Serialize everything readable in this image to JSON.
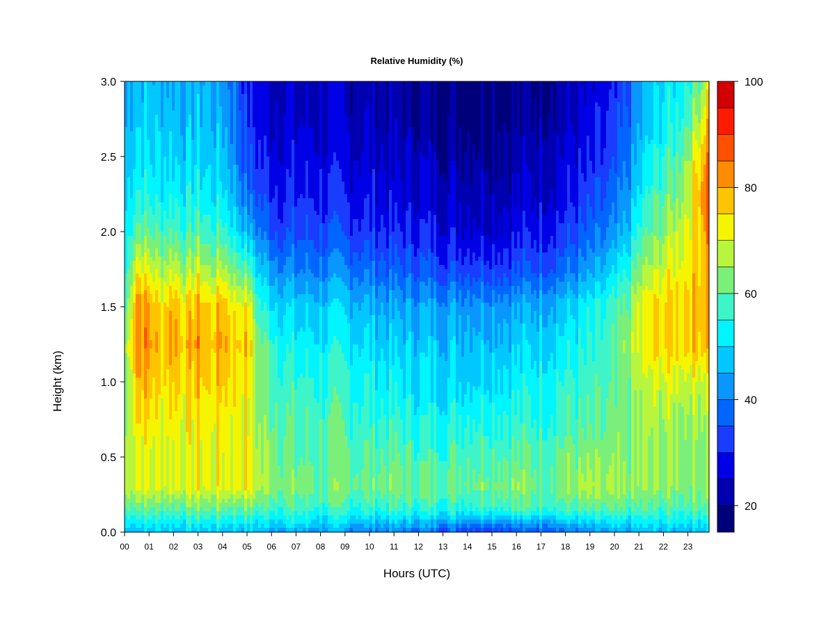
{
  "chart_data": {
    "type": "heatmap",
    "title": "Relative Humidity (%)",
    "xlabel": "Hours (UTC)",
    "ylabel": "Height (km)",
    "x_ticks": [
      "00",
      "01",
      "02",
      "03",
      "04",
      "05",
      "06",
      "07",
      "08",
      "09",
      "10",
      "11",
      "12",
      "13",
      "14",
      "15",
      "16",
      "17",
      "18",
      "19",
      "20",
      "21",
      "22",
      "23"
    ],
    "y_ticks": [
      "0.0",
      "0.5",
      "1.0",
      "1.5",
      "2.0",
      "2.5",
      "3.0"
    ],
    "xlim": [
      0,
      23.85
    ],
    "ylim": [
      0,
      3.0
    ],
    "colorbar": {
      "label_ticks": [
        "20",
        "40",
        "60",
        "80",
        "100"
      ],
      "range": [
        15,
        100
      ],
      "levels": [
        15,
        20,
        25,
        30,
        35,
        40,
        45,
        50,
        55,
        60,
        65,
        70,
        75,
        80,
        85,
        90,
        95,
        100
      ],
      "colors": [
        "#00007a",
        "#0000b0",
        "#0000e6",
        "#1a3cff",
        "#0066ff",
        "#0a96ff",
        "#00c8ff",
        "#00f5ff",
        "#3df5c8",
        "#7af07a",
        "#b8f53d",
        "#f5f500",
        "#ffc400",
        "#ff8c00",
        "#ff5000",
        "#ff1a00",
        "#d20000",
        "#820000"
      ]
    },
    "grid": false,
    "legend": "right",
    "x_hours": [
      0,
      0.5,
      1,
      1.5,
      2,
      2.5,
      3,
      3.5,
      4,
      4.5,
      5,
      5.5,
      6,
      6.5,
      7,
      8,
      9,
      10,
      11,
      12,
      13,
      14,
      15,
      16,
      17,
      18,
      19,
      20,
      20.5,
      21,
      21.5,
      22,
      22.5,
      23,
      23.5,
      23.85
    ],
    "y_heights": [
      0.0,
      0.05,
      0.15,
      0.3,
      0.5,
      0.75,
      1.0,
      1.25,
      1.5,
      1.75,
      2.0,
      2.25,
      2.5,
      2.75,
      3.0
    ],
    "rh_values": [
      [
        48,
        52,
        58,
        68,
        66,
        62,
        62,
        63,
        56,
        52,
        50,
        48,
        46,
        44,
        43
      ],
      [
        48,
        52,
        62,
        72,
        72,
        76,
        80,
        84,
        84,
        74,
        62,
        56,
        52,
        50,
        48
      ],
      [
        48,
        52,
        60,
        70,
        70,
        74,
        78,
        82,
        80,
        70,
        60,
        54,
        50,
        48,
        47
      ],
      [
        48,
        52,
        60,
        70,
        70,
        72,
        74,
        76,
        74,
        66,
        58,
        52,
        50,
        48,
        46
      ],
      [
        48,
        52,
        60,
        72,
        72,
        74,
        78,
        82,
        80,
        70,
        60,
        54,
        50,
        48,
        47
      ],
      [
        48,
        52,
        60,
        70,
        70,
        72,
        74,
        76,
        74,
        64,
        56,
        52,
        48,
        46,
        45
      ],
      [
        48,
        52,
        62,
        72,
        72,
        74,
        78,
        82,
        80,
        70,
        60,
        54,
        50,
        47,
        46
      ],
      [
        48,
        52,
        60,
        70,
        70,
        72,
        74,
        76,
        74,
        64,
        56,
        50,
        48,
        46,
        45
      ],
      [
        48,
        52,
        62,
        72,
        72,
        74,
        78,
        82,
        80,
        68,
        58,
        52,
        48,
        46,
        44
      ],
      [
        48,
        52,
        60,
        72,
        72,
        72,
        74,
        76,
        72,
        62,
        52,
        46,
        42,
        40,
        38
      ],
      [
        46,
        52,
        62,
        74,
        74,
        72,
        74,
        78,
        74,
        60,
        46,
        38,
        34,
        32,
        30
      ],
      [
        46,
        50,
        58,
        66,
        66,
        64,
        64,
        62,
        56,
        48,
        40,
        34,
        30,
        28,
        27
      ],
      [
        45,
        50,
        58,
        66,
        64,
        62,
        60,
        58,
        52,
        44,
        36,
        32,
        28,
        26,
        25
      ],
      [
        44,
        50,
        58,
        64,
        62,
        60,
        58,
        54,
        50,
        42,
        34,
        30,
        28,
        26,
        24
      ],
      [
        44,
        50,
        58,
        62,
        60,
        58,
        56,
        52,
        48,
        40,
        34,
        30,
        27,
        25,
        24
      ],
      [
        43,
        48,
        56,
        62,
        60,
        58,
        56,
        52,
        48,
        40,
        34,
        30,
        27,
        25,
        24
      ],
      [
        42,
        48,
        56,
        62,
        60,
        58,
        56,
        52,
        48,
        40,
        33,
        29,
        26,
        24,
        23
      ],
      [
        40,
        46,
        56,
        62,
        60,
        56,
        54,
        50,
        46,
        38,
        32,
        28,
        26,
        24,
        22
      ],
      [
        40,
        46,
        56,
        62,
        60,
        56,
        52,
        48,
        44,
        36,
        30,
        26,
        24,
        22,
        21
      ],
      [
        38,
        45,
        56,
        62,
        58,
        54,
        50,
        48,
        44,
        36,
        30,
        26,
        24,
        21,
        20
      ],
      [
        36,
        44,
        56,
        62,
        58,
        54,
        50,
        48,
        44,
        34,
        28,
        25,
        22,
        20,
        19
      ],
      [
        34,
        42,
        56,
        62,
        60,
        56,
        50,
        48,
        44,
        34,
        27,
        24,
        22,
        19,
        18
      ],
      [
        34,
        42,
        58,
        64,
        60,
        56,
        52,
        48,
        44,
        34,
        27,
        24,
        22,
        20,
        19
      ],
      [
        34,
        42,
        58,
        64,
        60,
        56,
        52,
        48,
        44,
        34,
        28,
        24,
        22,
        20,
        20
      ],
      [
        36,
        44,
        58,
        62,
        60,
        56,
        54,
        50,
        46,
        36,
        30,
        26,
        24,
        22,
        21
      ],
      [
        38,
        46,
        58,
        64,
        62,
        58,
        56,
        52,
        48,
        38,
        32,
        28,
        26,
        24,
        22
      ],
      [
        40,
        46,
        58,
        66,
        62,
        58,
        56,
        54,
        52,
        42,
        36,
        32,
        28,
        26,
        24
      ],
      [
        42,
        48,
        58,
        64,
        62,
        60,
        58,
        58,
        56,
        48,
        40,
        36,
        32,
        30,
        28
      ],
      [
        44,
        48,
        58,
        64,
        62,
        62,
        62,
        64,
        60,
        54,
        46,
        42,
        38,
        36,
        34
      ],
      [
        44,
        50,
        58,
        64,
        64,
        64,
        66,
        70,
        70,
        62,
        56,
        50,
        46,
        44,
        42
      ],
      [
        46,
        50,
        58,
        64,
        64,
        66,
        68,
        74,
        74,
        66,
        60,
        56,
        52,
        48,
        46
      ],
      [
        46,
        50,
        58,
        64,
        64,
        66,
        70,
        76,
        76,
        70,
        64,
        60,
        56,
        52,
        50
      ],
      [
        46,
        52,
        58,
        64,
        64,
        66,
        70,
        76,
        76,
        72,
        68,
        62,
        58,
        54,
        52
      ],
      [
        46,
        52,
        60,
        64,
        64,
        66,
        70,
        78,
        78,
        74,
        72,
        70,
        66,
        60,
        56
      ],
      [
        48,
        52,
        60,
        64,
        64,
        66,
        70,
        78,
        80,
        78,
        78,
        80,
        76,
        68,
        62
      ],
      [
        48,
        54,
        62,
        66,
        66,
        68,
        72,
        80,
        82,
        82,
        86,
        90,
        86,
        80,
        74
      ]
    ]
  }
}
